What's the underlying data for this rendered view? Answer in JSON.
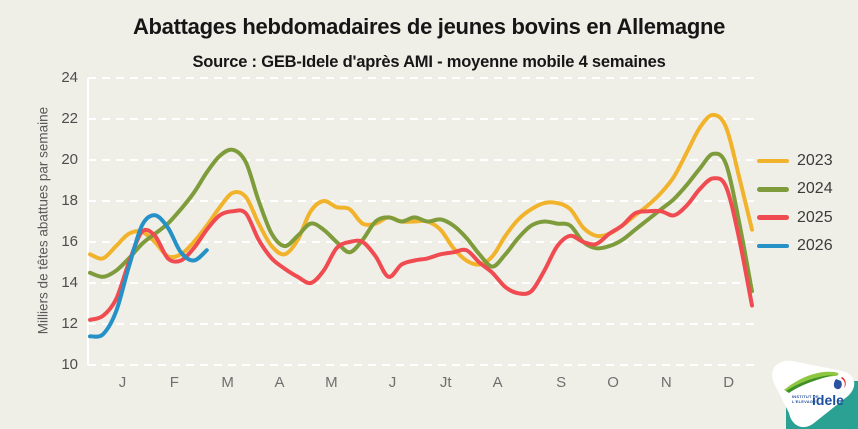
{
  "title": "Abattages hebdomadaires de jeunes bovins en Allemagne",
  "subtitle": "Source : GEB-Idele d'après AMI - moyenne mobile 4 semaines",
  "y_axis": {
    "label": "Milliers de têtes abattues par semaine",
    "min": 10,
    "max": 24
  },
  "x_axis": {
    "months": [
      "J",
      "F",
      "M",
      "A",
      "M",
      "J",
      "Jt",
      "A",
      "S",
      "O",
      "N",
      "D"
    ],
    "month_week_centers": [
      3.5,
      7.5,
      11.6,
      15.6,
      19.6,
      24.3,
      28.4,
      32.4,
      37.3,
      41.3,
      45.4,
      50.2
    ]
  },
  "legend": [
    {
      "label": "2023",
      "color": "#f2b32c"
    },
    {
      "label": "2024",
      "color": "#7f9c3c"
    },
    {
      "label": "2025",
      "color": "#ef4b50"
    },
    {
      "label": "2026",
      "color": "#2591c6"
    }
  ],
  "chart_data": {
    "type": "line",
    "x_unit": "week_of_year",
    "y_ticks": [
      10,
      12,
      14,
      16,
      18,
      20,
      22,
      24
    ],
    "ylim": [
      10,
      24
    ],
    "grid": "dashed-white-horizontal",
    "legend_position": "right",
    "series": [
      {
        "name": "2023",
        "color": "#f2b32c",
        "values": [
          15.4,
          15.2,
          15.8,
          16.4,
          16.5,
          16.0,
          15.3,
          15.4,
          16.0,
          16.8,
          17.7,
          18.4,
          18.2,
          16.9,
          15.8,
          15.4,
          16.1,
          17.5,
          18.0,
          17.7,
          17.6,
          16.9,
          16.9,
          17.2,
          17.0,
          17.0,
          17.0,
          16.6,
          15.7,
          15.1,
          14.9,
          15.3,
          16.3,
          17.1,
          17.6,
          17.9,
          17.9,
          17.6,
          16.7,
          16.3,
          16.4,
          16.8,
          17.3,
          17.8,
          18.4,
          19.2,
          20.4,
          21.6,
          22.2,
          21.6,
          19.2,
          16.6
        ]
      },
      {
        "name": "2024",
        "color": "#7f9c3c",
        "values": [
          14.5,
          14.3,
          14.6,
          15.2,
          15.9,
          16.4,
          16.9,
          17.6,
          18.4,
          19.4,
          20.2,
          20.5,
          19.9,
          18.0,
          16.4,
          15.8,
          16.3,
          16.9,
          16.6,
          16.0,
          15.5,
          16.1,
          17.0,
          17.2,
          17.0,
          17.2,
          17.0,
          17.1,
          16.8,
          16.2,
          15.4,
          14.8,
          15.4,
          16.2,
          16.8,
          17.0,
          16.9,
          16.8,
          16.0,
          15.7,
          15.8,
          16.1,
          16.6,
          17.1,
          17.6,
          18.1,
          18.8,
          19.6,
          20.3,
          19.8,
          17.0,
          13.6
        ]
      },
      {
        "name": "2025",
        "color": "#ef4b50",
        "values": [
          12.2,
          12.4,
          13.2,
          15.0,
          16.5,
          16.3,
          15.2,
          15.1,
          15.7,
          16.6,
          17.3,
          17.5,
          17.4,
          16.1,
          15.2,
          14.7,
          14.3,
          14.0,
          14.6,
          15.7,
          16.0,
          16.0,
          15.3,
          14.3,
          14.9,
          15.1,
          15.2,
          15.4,
          15.5,
          15.6,
          15.0,
          14.5,
          13.8,
          13.5,
          13.6,
          14.6,
          15.8,
          16.3,
          16.0,
          15.9,
          16.4,
          16.8,
          17.4,
          17.5,
          17.5,
          17.3,
          17.8,
          18.6,
          19.1,
          18.7,
          16.2,
          12.9
        ]
      },
      {
        "name": "2026",
        "color": "#2591c6",
        "values": [
          11.4,
          11.5,
          12.6,
          14.8,
          16.8,
          17.3,
          16.7,
          15.5,
          15.1,
          15.6
        ]
      }
    ]
  },
  "logo": {
    "line1": "INSTITUT DE",
    "line2": "L'ELEVAGE",
    "name": "idele"
  },
  "colors": {
    "background": "#f0efe7",
    "grid": "#ffffff",
    "logo_teal": "#2aa193",
    "logo_blue": "#1c4f9e",
    "logo_green": "#8dc63f",
    "logo_red": "#e0262b"
  }
}
